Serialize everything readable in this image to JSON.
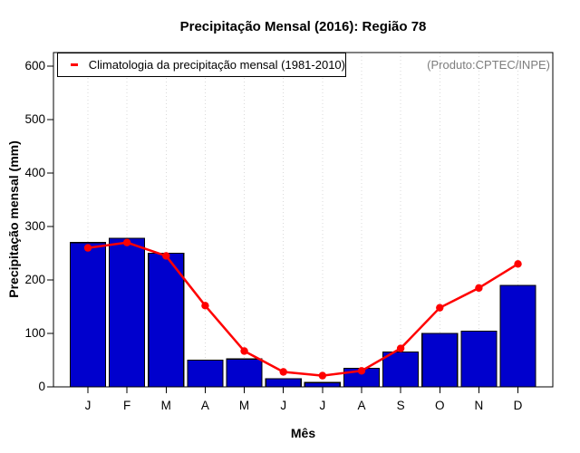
{
  "window": {
    "title": "Precipitação Mensal (2016): Região 78"
  },
  "annotations": {
    "produto": "(Produto:CPTEC/INPE)"
  },
  "chart_data": {
    "type": "bar",
    "title": "Precipitação Mensal (2016): Região 78",
    "xlabel": "Mês",
    "ylabel": "Precipitação mensal (mm)",
    "categories": [
      "J",
      "F",
      "M",
      "A",
      "M",
      "J",
      "J",
      "A",
      "S",
      "O",
      "N",
      "D"
    ],
    "series": [
      {
        "name": "Precipitação mensal (2016)",
        "type": "bar",
        "color": "#0000CD",
        "border_color": "#000000",
        "values": [
          270,
          278,
          250,
          50,
          52,
          15,
          8,
          35,
          65,
          100,
          104,
          190
        ]
      },
      {
        "name": "Climatologia da precipitação mensal (1981-2010)",
        "type": "line",
        "color": "#FF0000",
        "marker": "filled-circle",
        "values": [
          260,
          270,
          245,
          152,
          67,
          28,
          21,
          30,
          72,
          148,
          185,
          230
        ]
      }
    ],
    "ylim": [
      0,
      625
    ],
    "yticks": [
      0,
      100,
      200,
      300,
      400,
      500,
      600
    ],
    "grid": "vertical-dotted",
    "grid_color": "#d9d9d9",
    "frame_color": "#000000",
    "legend_position": "top-left"
  }
}
